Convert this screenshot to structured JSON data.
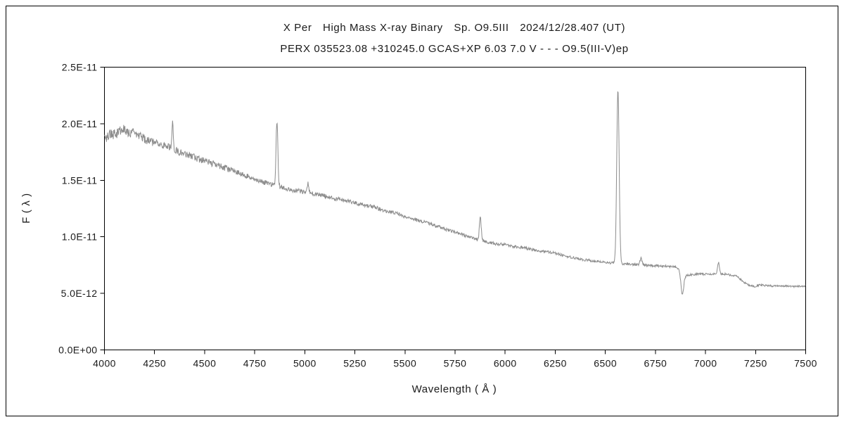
{
  "chart_data": {
    "type": "line",
    "title": "X Per High Mass X-ray Binary Sp. O9.5III 2024/12/28.407 (UT)",
    "subtitle": "PERX 035523.08 +310245.0 GCAS+XP 6.03 7.0 V - - - O9.5(III-V)ep",
    "xlabel": "Wavelength ( Å )",
    "ylabel": "F ( λ )",
    "xlim": [
      4000,
      7500
    ],
    "ylim_1e11": [
      0,
      2.5
    ],
    "grid": false,
    "legend": "none",
    "line_color": "#8c8c8c",
    "axis_color": "#000000",
    "xticks": [
      4000,
      4250,
      4500,
      4750,
      5000,
      5250,
      5500,
      5750,
      6000,
      6250,
      6500,
      6750,
      7000,
      7250,
      7500
    ],
    "ytick_values_1e11": [
      0,
      0.5,
      1.0,
      1.5,
      2.0,
      2.5
    ],
    "ytick_labels": [
      "0.0E+00",
      "5.0E-12",
      "1.0E-11",
      "1.5E-11",
      "2.0E-11",
      "2.5E-11"
    ],
    "continuum_anchors_1e11": [
      [
        4000,
        1.86
      ],
      [
        4030,
        1.92
      ],
      [
        4060,
        1.9
      ],
      [
        4090,
        1.95
      ],
      [
        4120,
        1.93
      ],
      [
        4150,
        1.91
      ],
      [
        4180,
        1.88
      ],
      [
        4210,
        1.86
      ],
      [
        4240,
        1.84
      ],
      [
        4270,
        1.82
      ],
      [
        4300,
        1.8
      ],
      [
        4350,
        1.77
      ],
      [
        4400,
        1.73
      ],
      [
        4450,
        1.7
      ],
      [
        4500,
        1.67
      ],
      [
        4550,
        1.64
      ],
      [
        4600,
        1.61
      ],
      [
        4650,
        1.58
      ],
      [
        4700,
        1.54
      ],
      [
        4750,
        1.51
      ],
      [
        4800,
        1.48
      ],
      [
        4861,
        1.45
      ],
      [
        4900,
        1.43
      ],
      [
        4950,
        1.41
      ],
      [
        5000,
        1.4
      ],
      [
        5050,
        1.38
      ],
      [
        5100,
        1.36
      ],
      [
        5150,
        1.34
      ],
      [
        5200,
        1.32
      ],
      [
        5250,
        1.3
      ],
      [
        5300,
        1.28
      ],
      [
        5350,
        1.26
      ],
      [
        5400,
        1.23
      ],
      [
        5450,
        1.21
      ],
      [
        5500,
        1.18
      ],
      [
        5550,
        1.15
      ],
      [
        5600,
        1.13
      ],
      [
        5650,
        1.1
      ],
      [
        5700,
        1.07
      ],
      [
        5750,
        1.04
      ],
      [
        5800,
        1.01
      ],
      [
        5850,
        0.98
      ],
      [
        5900,
        0.96
      ],
      [
        5950,
        0.94
      ],
      [
        6000,
        0.93
      ],
      [
        6050,
        0.91
      ],
      [
        6100,
        0.9
      ],
      [
        6150,
        0.88
      ],
      [
        6200,
        0.87
      ],
      [
        6250,
        0.855
      ],
      [
        6300,
        0.83
      ],
      [
        6350,
        0.81
      ],
      [
        6400,
        0.795
      ],
      [
        6450,
        0.785
      ],
      [
        6500,
        0.775
      ],
      [
        6550,
        0.765
      ],
      [
        6600,
        0.76
      ],
      [
        6650,
        0.755
      ],
      [
        6700,
        0.75
      ],
      [
        6750,
        0.745
      ],
      [
        6800,
        0.74
      ],
      [
        6850,
        0.735
      ],
      [
        6870,
        0.72
      ],
      [
        6900,
        0.66
      ],
      [
        6930,
        0.665
      ],
      [
        6960,
        0.67
      ],
      [
        7000,
        0.67
      ],
      [
        7050,
        0.675
      ],
      [
        7100,
        0.67
      ],
      [
        7150,
        0.655
      ],
      [
        7180,
        0.62
      ],
      [
        7210,
        0.575
      ],
      [
        7240,
        0.56
      ],
      [
        7270,
        0.575
      ],
      [
        7300,
        0.57
      ],
      [
        7350,
        0.565
      ],
      [
        7400,
        0.565
      ],
      [
        7450,
        0.56
      ],
      [
        7500,
        0.565
      ]
    ],
    "features": [
      {
        "name": "H-gamma emission",
        "center": 4340,
        "amp": 0.22,
        "sigma": 3.5
      },
      {
        "name": "H-beta emission",
        "center": 4861,
        "amp": 0.58,
        "sigma": 4.5
      },
      {
        "name": "Fe II 5016 emission",
        "center": 5016,
        "amp": 0.08,
        "sigma": 4
      },
      {
        "name": "He I 5876 emission",
        "center": 5876,
        "amp": 0.2,
        "sigma": 4.5
      },
      {
        "name": "H-alpha emission",
        "center": 6563,
        "amp": 1.54,
        "sigma": 6
      },
      {
        "name": "He I 6678 emission",
        "center": 6678,
        "amp": 0.06,
        "sigma": 5
      },
      {
        "name": "telluric B-band absorption",
        "center": 6884,
        "amp": -0.2,
        "sigma": 7
      },
      {
        "name": "He I 7065 emission",
        "center": 7065,
        "amp": 0.1,
        "sigma": 4.5
      }
    ],
    "noise_amp_1e11": [
      [
        4000,
        0.05
      ],
      [
        4400,
        0.032
      ],
      [
        5000,
        0.02
      ],
      [
        5600,
        0.015
      ],
      [
        6500,
        0.011
      ],
      [
        7500,
        0.009
      ]
    ]
  }
}
